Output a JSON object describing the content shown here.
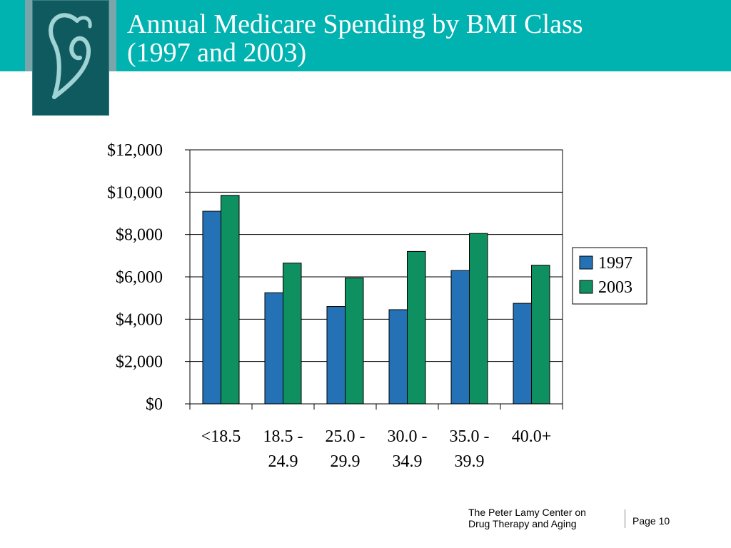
{
  "slide": {
    "title_line1": "Annual Medicare Spending by BMI Class",
    "title_line2": "(1997 and 2003)",
    "footer_org_line1": "The Peter Lamy Center on",
    "footer_org_line2": "Drug Therapy and Aging",
    "footer_page": "Page 10",
    "colors": {
      "title_bar": "#00b3b0",
      "logo": "#0f5a5e"
    }
  },
  "chart_data": {
    "type": "bar",
    "title": "",
    "xlabel": "",
    "ylabel": "",
    "categories": [
      [
        "<18.5"
      ],
      [
        "18.5 -",
        "24.9"
      ],
      [
        "25.0 -",
        "29.9"
      ],
      [
        "30.0 -",
        "34.9"
      ],
      [
        "35.0 -",
        "39.9"
      ],
      [
        "40.0+"
      ]
    ],
    "series": [
      {
        "name": "1997",
        "color": "#2472b5",
        "values": [
          9100,
          5250,
          4600,
          4450,
          6300,
          4750
        ]
      },
      {
        "name": "2003",
        "color": "#0f9060",
        "values": [
          9850,
          6650,
          5950,
          7200,
          8050,
          6550
        ]
      }
    ],
    "ylim": [
      0,
      12000
    ],
    "yticks": [
      0,
      2000,
      4000,
      6000,
      8000,
      10000,
      12000
    ],
    "ytick_labels": [
      "$0",
      "$2,000",
      "$4,000",
      "$6,000",
      "$8,000",
      "$10,000",
      "$12,000"
    ],
    "grid": true,
    "legend": "right"
  }
}
